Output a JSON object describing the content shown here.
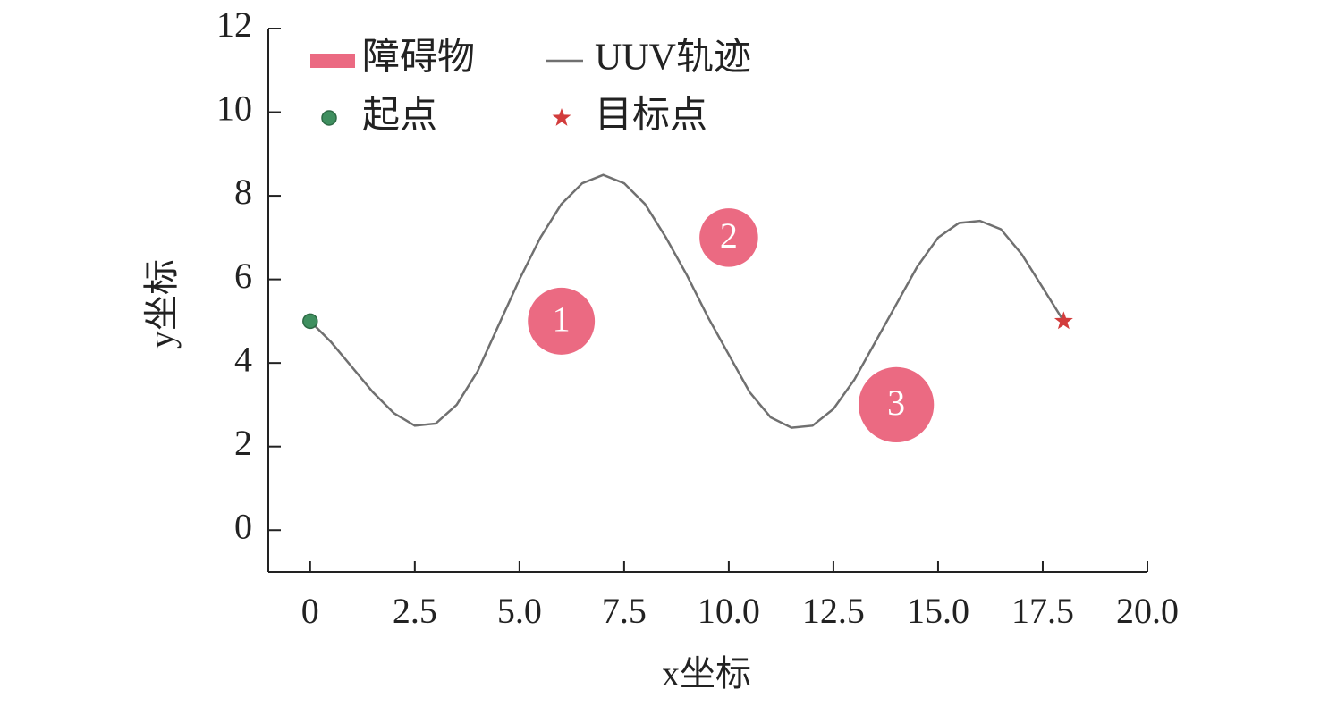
{
  "chart_data": {
    "type": "line",
    "x_label": "x坐标",
    "y_label": "y坐标",
    "xlim": [
      -1,
      20
    ],
    "ylim": [
      -1,
      12
    ],
    "xticks": [
      0,
      2.5,
      {
        "value": 5,
        "label": "5.0"
      },
      7.5,
      {
        "value": 10,
        "label": "10.0"
      },
      12.5,
      {
        "value": 15,
        "label": "15.0"
      },
      17.5,
      {
        "value": 20,
        "label": "20.0"
      }
    ],
    "yticks": [
      0,
      2,
      4,
      6,
      8,
      10,
      12
    ],
    "x": [
      0,
      0.5,
      1,
      1.5,
      2,
      2.5,
      3,
      3.5,
      4,
      4.5,
      5,
      5.5,
      6,
      6.5,
      7,
      7.5,
      8,
      8.5,
      9,
      9.5,
      10,
      10.5,
      11,
      11.5,
      12,
      12.5,
      13,
      13.5,
      14,
      14.5,
      15,
      15.5,
      16,
      16.5,
      17,
      17.5,
      18
    ],
    "series": [
      {
        "name": "UUV轨迹",
        "color": "#707070",
        "values": [
          5,
          4.5,
          3.9,
          3.3,
          2.8,
          2.5,
          2.55,
          3.0,
          3.8,
          4.9,
          6.0,
          7.0,
          7.8,
          8.3,
          8.5,
          8.3,
          7.8,
          7.0,
          6.1,
          5.1,
          4.2,
          3.3,
          2.7,
          2.45,
          2.5,
          2.9,
          3.6,
          4.5,
          5.4,
          6.3,
          7.0,
          7.35,
          7.4,
          7.2,
          6.6,
          5.8,
          5.0
        ]
      }
    ],
    "obstacles": {
      "name": "障碍物",
      "color": "#eb6a82",
      "x": [
        6,
        10,
        14
      ],
      "y": [
        5,
        7,
        3
      ],
      "r": [
        0.8,
        0.7,
        0.9
      ],
      "labels": [
        "1",
        "2",
        "3"
      ]
    },
    "start": {
      "name": "起点",
      "color": "#3f8f5f",
      "x": 0,
      "y": 5
    },
    "target": {
      "name": "目标点",
      "color": "#d23c3c",
      "x": 18,
      "y": 5
    }
  }
}
